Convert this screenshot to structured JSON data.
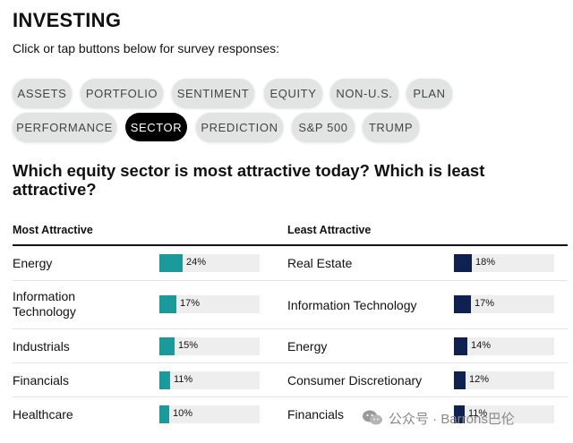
{
  "header": {
    "title": "INVESTING",
    "subtitle": "Click or tap buttons below for survey responses:"
  },
  "tabs": [
    {
      "label": "ASSETS",
      "active": false
    },
    {
      "label": "PORTFOLIO",
      "active": false
    },
    {
      "label": "SENTIMENT",
      "active": false
    },
    {
      "label": "EQUITY",
      "active": false
    },
    {
      "label": "NON-U.S.",
      "active": false
    },
    {
      "label": "PLAN",
      "active": false
    },
    {
      "label": "PERFORMANCE",
      "active": false
    },
    {
      "label": "SECTOR",
      "active": true
    },
    {
      "label": "PREDICTION",
      "active": false
    },
    {
      "label": "S&P 500",
      "active": false
    },
    {
      "label": "TRUMP",
      "active": false
    }
  ],
  "question": "Which equity sector is most attractive today? Which is least attractive?",
  "columns": {
    "most": "Most Attractive",
    "least": "Least Attractive"
  },
  "most": [
    {
      "sector": "Energy",
      "pct_label": "24%",
      "value": 24
    },
    {
      "sector": "Information Technology",
      "pct_label": "17%",
      "value": 17
    },
    {
      "sector": "Industrials",
      "pct_label": "15%",
      "value": 15
    },
    {
      "sector": "Financials",
      "pct_label": "11%",
      "value": 11
    },
    {
      "sector": "Healthcare",
      "pct_label": "10%",
      "value": 10
    }
  ],
  "least": [
    {
      "sector": "Real Estate",
      "pct_label": "18%",
      "value": 18
    },
    {
      "sector": "Information Technology",
      "pct_label": "17%",
      "value": 17
    },
    {
      "sector": "Energy",
      "pct_label": "14%",
      "value": 14
    },
    {
      "sector": "Consumer Discretionary",
      "pct_label": "12%",
      "value": 12
    },
    {
      "sector": "Financials",
      "pct_label": "11%",
      "value": 11
    }
  ],
  "colors": {
    "most_bar": "#1a9a9a",
    "least_bar": "#0e2150",
    "track": "#eeeeee",
    "active_tab": "#000000",
    "inactive_tab": "#e2e4e4"
  },
  "watermark": {
    "text": "公众号 · Barrons巴伦",
    "icon": "wechat-icon"
  }
}
